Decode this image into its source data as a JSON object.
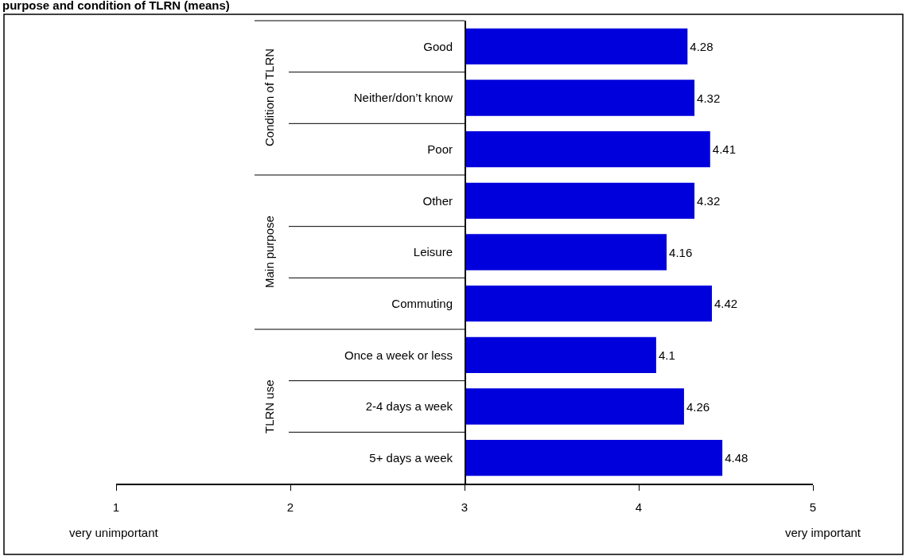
{
  "chart_data": {
    "type": "bar",
    "orientation": "horizontal",
    "title": "purpose and condition of TLRN (means)",
    "categories": [
      "Good",
      "Neither/don’t know",
      "Poor",
      "Other",
      "Leisure",
      "Commuting",
      "Once a week or less",
      "2-4 days a week",
      "5+ days a week"
    ],
    "base": [
      3,
      3,
      3,
      3,
      3,
      3,
      3,
      3,
      3
    ],
    "values": [
      1.28,
      1.32,
      1.41,
      1.32,
      1.16,
      1.42,
      1.1,
      1.26,
      1.48
    ],
    "value_labels": [
      "4.28",
      "4.32",
      "4.41",
      "4.32",
      "4.16",
      "4.42",
      "4.1",
      "4.26",
      "4.48"
    ],
    "color": "#0000dd",
    "xlim": [
      1,
      5
    ],
    "xticks": [
      1,
      2,
      3,
      4,
      5
    ],
    "grid": false,
    "annotations": [
      "very unimportant",
      "very important",
      "Condition of TLRN",
      "Main purpose",
      "TLRN use"
    ]
  }
}
